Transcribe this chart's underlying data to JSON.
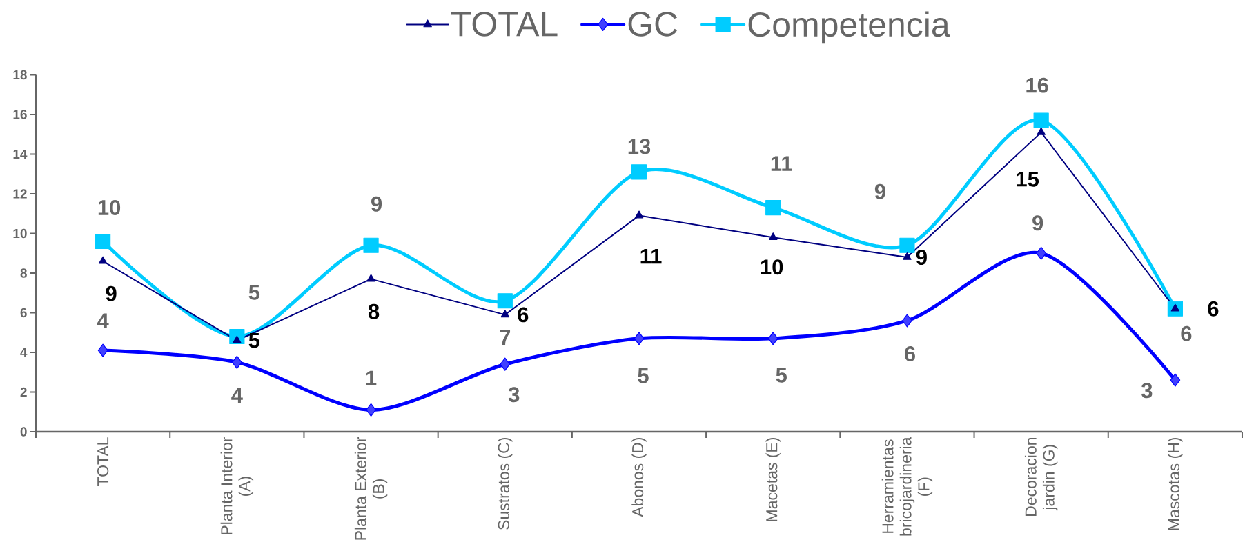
{
  "chart_data": {
    "type": "line",
    "categories": [
      "TOTAL",
      "Planta Interior (A)",
      "Planta Exterior (B)",
      "Sustratos (C)",
      "Abonos (D)",
      "Macetas (E)",
      "Herramientas bricojardineria (F)",
      "Decoracion jardin (G)",
      "Mascotas (H)"
    ],
    "series": [
      {
        "name": "TOTAL",
        "color": "#000080",
        "marker": "triangle",
        "values": [
          8.6,
          4.6,
          7.7,
          5.9,
          10.9,
          9.8,
          8.8,
          15.1,
          6.2
        ],
        "value_labels": [
          "9",
          "5",
          "8",
          "6",
          "11",
          "10",
          "9",
          "15",
          "6"
        ]
      },
      {
        "name": "GC",
        "color": "#0000ff",
        "marker": "diamond",
        "values": [
          4.1,
          3.5,
          1.1,
          3.4,
          4.7,
          4.7,
          5.6,
          9.0,
          2.6
        ],
        "value_labels": [
          "4",
          "4",
          "1",
          "3",
          "5",
          "5",
          "6",
          "9",
          "3"
        ]
      },
      {
        "name": "Competencia",
        "color": "#00ccff",
        "marker": "square",
        "values": [
          9.6,
          4.8,
          9.4,
          6.6,
          13.1,
          11.3,
          9.4,
          15.7,
          6.2
        ],
        "value_labels": [
          "10",
          "5",
          "9",
          "7",
          "13",
          "11",
          "9",
          "16",
          "6"
        ]
      }
    ],
    "ylim": [
      0,
      18
    ],
    "yticks": [
      0,
      2,
      4,
      6,
      8,
      10,
      12,
      14,
      16,
      18
    ],
    "legend": "top"
  }
}
